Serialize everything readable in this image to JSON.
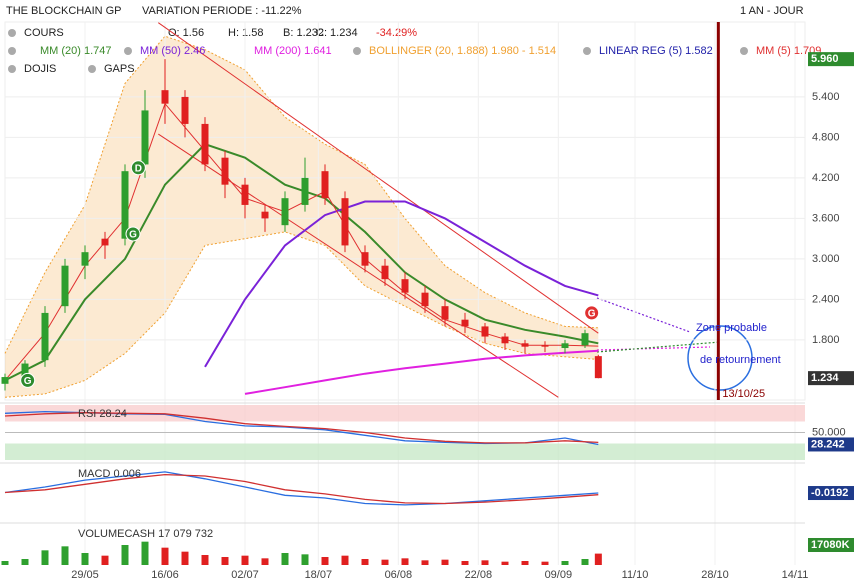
{
  "header": {
    "name": "THE BLOCKCHAIN GP",
    "variation": "VARIATION PERIODE : -11.22%",
    "ohlc": [
      "O: 1.56",
      "H: 1.58",
      "B: 1.232",
      "C: 1.234"
    ],
    "change": "-34.29%",
    "period": "1 AN - JOUR",
    "legend": [
      "COURS",
      "DOJIS",
      "GAPS"
    ]
  },
  "chart_data": [
    {
      "type": "candlestick",
      "xlim": [
        0,
        120
      ],
      "ylim": [
        0.91,
        6.51
      ],
      "xticks": [
        {
          "value": 12,
          "label": "29/05"
        },
        {
          "value": 24,
          "label": "16/06"
        },
        {
          "value": 36,
          "label": "02/07"
        },
        {
          "value": 47,
          "label": "18/07"
        },
        {
          "value": 59,
          "label": "06/08"
        },
        {
          "value": 71,
          "label": "22/08"
        },
        {
          "value": 83,
          "label": "09/09"
        },
        {
          "value": 94.5,
          "label": "11/10"
        },
        {
          "value": 106.5,
          "label": "28/10"
        },
        {
          "value": 118.5,
          "label": "14/11"
        }
      ],
      "yticks": [
        {
          "value": 1.8,
          "label": "1.800"
        },
        {
          "value": 2.4,
          "label": "2.400"
        },
        {
          "value": 3,
          "label": "3.000"
        },
        {
          "value": 3.6,
          "label": "3.600"
        },
        {
          "value": 4.2,
          "label": "4.200"
        },
        {
          "value": 4.8,
          "label": "4.800"
        },
        {
          "value": 5.4,
          "label": "5.400"
        }
      ],
      "up_color": "#2e9e2e",
      "down_color": "#e02020",
      "x": [
        0,
        3,
        6,
        9,
        12,
        15,
        18,
        21,
        24,
        27,
        30,
        33,
        36,
        39,
        42,
        45,
        48,
        51,
        54,
        57,
        60,
        63,
        66,
        69,
        72,
        75,
        78,
        81,
        84,
        87,
        89
      ],
      "open": [
        1.15,
        1.25,
        1.5,
        2.3,
        2.9,
        3.3,
        3.3,
        4.4,
        5.5,
        5.4,
        5.0,
        4.5,
        4.1,
        3.7,
        3.5,
        3.8,
        4.3,
        3.9,
        3.1,
        2.9,
        2.7,
        2.5,
        2.3,
        2.1,
        2.0,
        1.85,
        1.75,
        1.72,
        1.68,
        1.72,
        1.56
      ],
      "high": [
        1.3,
        1.5,
        2.3,
        3.0,
        3.2,
        3.4,
        4.4,
        5.5,
        5.96,
        5.5,
        5.1,
        4.6,
        4.2,
        3.8,
        4.0,
        4.5,
        4.4,
        4.0,
        3.2,
        3.0,
        2.8,
        2.6,
        2.4,
        2.2,
        2.05,
        1.9,
        1.8,
        1.78,
        1.8,
        1.95,
        1.58
      ],
      "low": [
        1.05,
        1.15,
        1.4,
        2.2,
        2.7,
        3.0,
        3.2,
        4.2,
        5.0,
        4.8,
        4.3,
        3.9,
        3.6,
        3.4,
        3.4,
        3.7,
        3.8,
        3.1,
        2.8,
        2.6,
        2.4,
        2.2,
        2.0,
        1.9,
        1.75,
        1.65,
        1.6,
        1.62,
        1.6,
        1.68,
        1.232
      ],
      "close": [
        1.25,
        1.45,
        2.2,
        2.9,
        3.1,
        3.2,
        4.3,
        5.2,
        5.3,
        5.0,
        4.4,
        4.1,
        3.8,
        3.6,
        3.9,
        4.2,
        3.9,
        3.2,
        2.9,
        2.7,
        2.5,
        2.3,
        2.1,
        2.0,
        1.85,
        1.75,
        1.7,
        1.7,
        1.75,
        1.9,
        1.234
      ],
      "band": {
        "name": "BOLLINGER (20, 1.888) 1.980 - 1.514",
        "color": "#f0a030",
        "x": [
          0,
          6,
          12,
          18,
          24,
          30,
          36,
          42,
          48,
          54,
          60,
          66,
          72,
          78,
          84,
          89
        ],
        "upper": [
          1.6,
          2.8,
          3.8,
          5.6,
          6.3,
          6.1,
          5.8,
          5.1,
          4.7,
          4.4,
          3.6,
          2.9,
          2.5,
          2.2,
          2.0,
          1.98
        ],
        "lower": [
          0.95,
          1.0,
          1.2,
          1.6,
          2.2,
          3.2,
          3.3,
          3.4,
          3.2,
          2.6,
          2.3,
          2.0,
          1.75,
          1.6,
          1.55,
          1.51
        ]
      },
      "series": [
        {
          "name": "MM (20) 1.747",
          "color": "#3a8a2a",
          "x": [
            0,
            6,
            12,
            18,
            24,
            30,
            36,
            42,
            48,
            54,
            60,
            66,
            72,
            78,
            84,
            89
          ],
          "values": [
            1.2,
            1.5,
            2.4,
            3.0,
            4.1,
            4.7,
            4.5,
            4.1,
            3.9,
            3.4,
            2.8,
            2.4,
            2.1,
            1.95,
            1.85,
            1.75
          ]
        },
        {
          "name": "MM (50) 2.46",
          "color": "#7a22d8",
          "x": [
            0,
            6,
            12,
            18,
            24,
            30,
            36,
            42,
            48,
            54,
            60,
            66,
            72,
            78,
            84,
            89
          ],
          "values": [
            null,
            null,
            null,
            null,
            null,
            1.4,
            2.4,
            3.2,
            3.65,
            3.85,
            3.85,
            3.6,
            3.25,
            2.9,
            2.6,
            2.46
          ]
        },
        {
          "name": "MM (200) 1.641",
          "color": "#e020e0",
          "x": [
            0,
            6,
            12,
            18,
            24,
            30,
            36,
            42,
            48,
            54,
            60,
            66,
            72,
            78,
            84,
            89
          ],
          "values": [
            null,
            null,
            null,
            null,
            null,
            null,
            1.0,
            1.1,
            1.2,
            1.3,
            1.38,
            1.45,
            1.52,
            1.57,
            1.61,
            1.641
          ]
        },
        {
          "name": "MM (5) 1.709",
          "color": "#e03030",
          "x": [
            0,
            6,
            12,
            18,
            24,
            30,
            36,
            42,
            48,
            54,
            60,
            66,
            72,
            78,
            84,
            89
          ],
          "values": [
            1.2,
            1.9,
            2.9,
            3.6,
            5.3,
            4.6,
            3.9,
            3.7,
            4.0,
            3.0,
            2.5,
            2.1,
            1.9,
            1.72,
            1.72,
            1.709
          ]
        }
      ],
      "channel": {
        "name": "LINEAR REG (5) 1.582",
        "color": "#e03030",
        "legend_color": "#2222aa",
        "upper": {
          "x": [
            23,
            89
          ],
          "values": [
            6.5,
            1.9
          ]
        },
        "lower": {
          "x": [
            23,
            83
          ],
          "values": [
            4.85,
            0.95
          ]
        }
      },
      "signals": [
        {
          "x": 3.4,
          "y": 1.2,
          "label": "G",
          "color": "#2e8b2e"
        },
        {
          "x": 20,
          "y": 4.35,
          "label": "D",
          "color": "#2e8b2e"
        },
        {
          "x": 19.2,
          "y": 3.37,
          "label": "G",
          "color": "#2e8b2e"
        },
        {
          "x": 88,
          "y": 2.2,
          "label": "G",
          "color": "#e03030"
        }
      ],
      "marker_line": {
        "x": 107,
        "label": "13/10/25",
        "color": "#8b0000"
      },
      "annotations": [
        "Zone probable",
        "de retournement"
      ],
      "high_label": {
        "value": 5.96,
        "label": "5.960"
      },
      "last_label": {
        "value": 1.234,
        "label": "1.234"
      }
    },
    {
      "type": "line",
      "title": "RSI 28.24",
      "xlim": [
        0,
        120
      ],
      "ylim": [
        0,
        100
      ],
      "yticks": [
        {
          "value": 50,
          "label": "50.000"
        }
      ],
      "overbought": 70,
      "oversold": 30,
      "series": [
        {
          "color": "#2a6ee0",
          "x": [
            0,
            6,
            12,
            18,
            24,
            30,
            36,
            42,
            48,
            54,
            60,
            66,
            72,
            78,
            84,
            89
          ],
          "values": [
            85,
            88,
            86,
            84,
            83,
            70,
            62,
            60,
            55,
            45,
            35,
            32,
            30,
            31,
            40,
            28.24
          ]
        },
        {
          "color": "#d03030",
          "x": [
            0,
            6,
            12,
            18,
            24,
            30,
            36,
            42,
            48,
            54,
            60,
            66,
            72,
            78,
            84,
            89
          ],
          "values": [
            80,
            84,
            86,
            85,
            84,
            76,
            66,
            61,
            57,
            50,
            40,
            34,
            31,
            31,
            35,
            32
          ]
        }
      ],
      "last_label": {
        "value": 28.242,
        "label": "28.242"
      }
    },
    {
      "type": "line",
      "title": "MACD 0.006",
      "xlim": [
        0,
        120
      ],
      "ylim": [
        -1,
        1
      ],
      "series": [
        {
          "color": "#2a6ee0",
          "x": [
            0,
            6,
            12,
            18,
            24,
            30,
            36,
            42,
            48,
            54,
            60,
            66,
            72,
            78,
            84,
            89
          ],
          "values": [
            0.0,
            0.2,
            0.45,
            0.6,
            0.75,
            0.5,
            0.2,
            -0.1,
            -0.2,
            -0.4,
            -0.45,
            -0.4,
            -0.3,
            -0.2,
            -0.1,
            -0.0192
          ]
        },
        {
          "color": "#d03030",
          "x": [
            0,
            6,
            12,
            18,
            24,
            30,
            36,
            42,
            48,
            54,
            60,
            66,
            72,
            78,
            84,
            89
          ],
          "values": [
            0.0,
            0.1,
            0.3,
            0.5,
            0.65,
            0.6,
            0.4,
            0.1,
            -0.05,
            -0.25,
            -0.38,
            -0.4,
            -0.35,
            -0.27,
            -0.17,
            -0.08
          ]
        }
      ],
      "last_label": {
        "value": -0.0192,
        "label": "-0.0192"
      }
    },
    {
      "type": "bar",
      "title": "VOLUMECASH 17 079 732",
      "xlim": [
        0,
        120
      ],
      "ylim": [
        0,
        60000000
      ],
      "color": "#2ea02e",
      "down_color": "#e02020",
      "values": [
        6000000,
        9000000,
        22000000,
        28000000,
        18000000,
        14000000,
        30000000,
        35000000,
        26000000,
        20000000,
        15000000,
        12000000,
        14000000,
        10000000,
        18000000,
        16000000,
        12000000,
        14000000,
        9000000,
        8000000,
        10000000,
        7000000,
        8000000,
        6000000,
        7000000,
        5000000,
        6000000,
        5000000,
        6000000,
        9000000,
        17079732
      ],
      "last_label": {
        "value": 17080000,
        "label": "17080K"
      }
    }
  ]
}
